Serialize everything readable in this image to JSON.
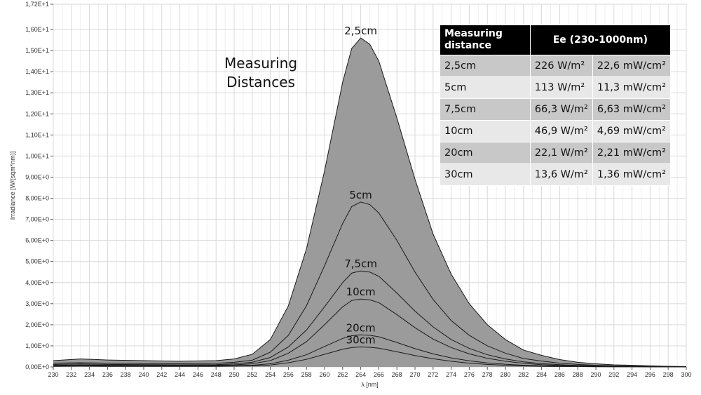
{
  "chart_data": {
    "type": "area",
    "xlabel": "λ [nm]",
    "ylabel": "Irradiance [W/(sqm*nm)]",
    "xlim": [
      230,
      300
    ],
    "ylim": [
      0,
      17.2
    ],
    "x_ticks": [
      "230",
      "232",
      "234",
      "236",
      "238",
      "240",
      "242",
      "244",
      "246",
      "248",
      "250",
      "252",
      "254",
      "256",
      "258",
      "260",
      "262",
      "264",
      "266",
      "268",
      "270",
      "272",
      "274",
      "276",
      "278",
      "280",
      "282",
      "284",
      "286",
      "288",
      "290",
      "292",
      "294",
      "296",
      "298",
      "300"
    ],
    "y_ticks": [
      "0,00E+0",
      "1,00E+0",
      "2,00E+0",
      "3,00E+0",
      "4,00E+0",
      "5,00E+0",
      "6,00E+0",
      "7,00E+0",
      "8,00E+0",
      "9,00E+0",
      "1,00E+1",
      "1,10E+1",
      "1,20E+1",
      "1,30E+1",
      "1,40E+1",
      "1,50E+1",
      "1,60E+1",
      "1,72E+1"
    ],
    "grid": true,
    "annotation": "Measuring Distances",
    "x": [
      230,
      233,
      236,
      240,
      244,
      248,
      250,
      252,
      254,
      256,
      258,
      260,
      262,
      263,
      264,
      265,
      266,
      268,
      270,
      272,
      274,
      276,
      278,
      280,
      282,
      284,
      286,
      288,
      290,
      292,
      294,
      296,
      298,
      300
    ],
    "series": [
      {
        "name": "2,5cm",
        "values": [
          0.3,
          0.38,
          0.33,
          0.3,
          0.27,
          0.3,
          0.38,
          0.6,
          1.3,
          2.9,
          5.6,
          9.3,
          13.5,
          15.1,
          15.6,
          15.3,
          14.5,
          11.8,
          8.9,
          6.3,
          4.4,
          3.0,
          2.0,
          1.3,
          0.8,
          0.55,
          0.35,
          0.22,
          0.15,
          0.1,
          0.08,
          0.05,
          0.03,
          0.02
        ]
      },
      {
        "name": "5cm",
        "values": [
          0.18,
          0.2,
          0.18,
          0.16,
          0.15,
          0.17,
          0.22,
          0.32,
          0.7,
          1.5,
          2.9,
          4.8,
          6.8,
          7.6,
          7.82,
          7.7,
          7.3,
          6.0,
          4.5,
          3.2,
          2.2,
          1.5,
          1.0,
          0.65,
          0.4,
          0.28,
          0.18,
          0.12,
          0.08,
          0.05,
          0.04,
          0.03,
          0.02,
          0.01
        ]
      },
      {
        "name": "7,5cm",
        "values": [
          0.12,
          0.14,
          0.12,
          0.11,
          0.1,
          0.11,
          0.15,
          0.22,
          0.45,
          0.95,
          1.75,
          2.85,
          4.0,
          4.45,
          4.55,
          4.5,
          4.3,
          3.5,
          2.65,
          1.9,
          1.3,
          0.88,
          0.58,
          0.38,
          0.24,
          0.16,
          0.11,
          0.07,
          0.05,
          0.03,
          0.02,
          0.02,
          0.01,
          0.01
        ]
      },
      {
        "name": "10cm",
        "values": [
          0.08,
          0.09,
          0.08,
          0.07,
          0.07,
          0.08,
          0.1,
          0.15,
          0.3,
          0.65,
          1.2,
          2.0,
          2.85,
          3.15,
          3.22,
          3.18,
          3.05,
          2.48,
          1.86,
          1.32,
          0.92,
          0.62,
          0.41,
          0.27,
          0.17,
          0.11,
          0.07,
          0.05,
          0.03,
          0.02,
          0.02,
          0.01,
          0.01,
          0.01
        ]
      },
      {
        "name": "20cm",
        "values": [
          0.05,
          0.06,
          0.05,
          0.05,
          0.04,
          0.05,
          0.06,
          0.08,
          0.15,
          0.32,
          0.58,
          0.97,
          1.35,
          1.48,
          1.52,
          1.5,
          1.43,
          1.16,
          0.87,
          0.62,
          0.43,
          0.29,
          0.19,
          0.13,
          0.08,
          0.05,
          0.04,
          0.03,
          0.02,
          0.01,
          0.01,
          0.01,
          0.0,
          0.0
        ]
      },
      {
        "name": "30cm",
        "values": [
          0.03,
          0.04,
          0.03,
          0.03,
          0.03,
          0.03,
          0.04,
          0.05,
          0.09,
          0.2,
          0.36,
          0.6,
          0.84,
          0.92,
          0.95,
          0.93,
          0.89,
          0.72,
          0.54,
          0.39,
          0.27,
          0.18,
          0.12,
          0.08,
          0.05,
          0.03,
          0.02,
          0.02,
          0.01,
          0.01,
          0.01,
          0.0,
          0.0,
          0.0
        ]
      }
    ]
  },
  "table": {
    "header_distance": "Measuring distance",
    "header_ee": "Ee  (230-1000nm)",
    "rows": [
      {
        "distance": "2,5cm",
        "wm2": "226 W/m²",
        "mwcm2": "22,6 mW/cm²"
      },
      {
        "distance": "5cm",
        "wm2": "113 W/m²",
        "mwcm2": "11,3 mW/cm²"
      },
      {
        "distance": "7,5cm",
        "wm2": "66,3 W/m²",
        "mwcm2": "6,63 mW/cm²"
      },
      {
        "distance": "10cm",
        "wm2": "46,9 W/m²",
        "mwcm2": "4,69 mW/cm²"
      },
      {
        "distance": "20cm",
        "wm2": "22,1 W/m²",
        "mwcm2": "2,21 mW/cm²"
      },
      {
        "distance": "30cm",
        "wm2": "13,6 W/m²",
        "mwcm2": "1,36 mW/cm²"
      }
    ]
  },
  "colors": {
    "fill": "#9b9b9b",
    "line": "#1a1a1a",
    "grid": "#d9d9d9",
    "table_header": "#000000"
  }
}
